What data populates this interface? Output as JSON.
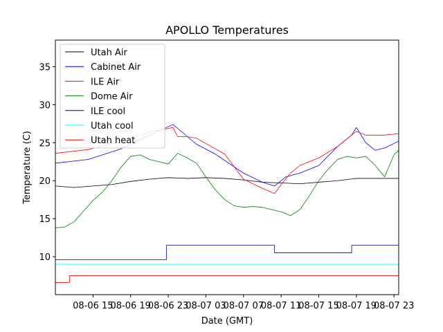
{
  "chart_data": {
    "type": "line",
    "title": "APOLLO Temperatures",
    "xlabel": "Date (GMT)",
    "ylabel": "Temperature (C)",
    "x_unit": "hours since 08-06 11:00 GMT",
    "xlim": [
      0,
      36.5
    ],
    "ylim": [
      5,
      38.5
    ],
    "x_ticks": [
      {
        "x": 4,
        "label": "08-06 15"
      },
      {
        "x": 8,
        "label": "08-06 19"
      },
      {
        "x": 12,
        "label": "08-06 23"
      },
      {
        "x": 16,
        "label": "08-07 03"
      },
      {
        "x": 20,
        "label": "08-07 07"
      },
      {
        "x": 24,
        "label": "08-07 11"
      },
      {
        "x": 28,
        "label": "08-07 15"
      },
      {
        "x": 32,
        "label": "08-07 19"
      },
      {
        "x": 36,
        "label": "08-07 23"
      }
    ],
    "y_ticks": [
      10,
      15,
      20,
      25,
      30,
      35
    ],
    "legend_position": "top-left",
    "series": [
      {
        "name": "Utah Air",
        "color": "#000000",
        "x": [
          0,
          2,
          3,
          4,
          6,
          8,
          10,
          12,
          14,
          16,
          18,
          20,
          22,
          24,
          26,
          28,
          30,
          32,
          34,
          36.5
        ],
        "y": [
          19.3,
          19.1,
          19.2,
          19.3,
          19.5,
          19.9,
          20.2,
          20.4,
          20.3,
          20.4,
          20.3,
          20.1,
          19.8,
          19.7,
          19.6,
          19.8,
          20.0,
          20.3,
          20.3,
          20.3
        ]
      },
      {
        "name": "Cabinet Air",
        "color": "#0000ff",
        "x": [
          0,
          3.5,
          7,
          10,
          12.5,
          15,
          17,
          20,
          22,
          23.3,
          24.5,
          26,
          28,
          30,
          31.5,
          32,
          33,
          34,
          35,
          36.5
        ],
        "y": [
          22.3,
          22.8,
          24.2,
          26.0,
          27.4,
          24.8,
          23.5,
          21.0,
          19.8,
          19.3,
          20.5,
          21.0,
          22.0,
          24.5,
          26.0,
          27.0,
          25.0,
          24.0,
          24.3,
          25.2
        ]
      },
      {
        "name": "ILE Air",
        "color": "#ff0000",
        "x": [
          0,
          3.5,
          7,
          10,
          12.5,
          13,
          14,
          15,
          17,
          18,
          20,
          22,
          23.3,
          24,
          25,
          26,
          28,
          30,
          31.5,
          32,
          33,
          34,
          35,
          36.5
        ],
        "y": [
          23.6,
          24.1,
          25.2,
          26.4,
          27.0,
          25.8,
          25.8,
          25.6,
          24.2,
          23.5,
          20.2,
          19.0,
          18.3,
          19.5,
          21.0,
          22.0,
          23.0,
          24.5,
          26.0,
          26.5,
          26.0,
          26.0,
          26.0,
          26.2
        ]
      },
      {
        "name": "Dome Air",
        "color": "#008000",
        "x": [
          0,
          1,
          2,
          3,
          4,
          5,
          6,
          7,
          8,
          9,
          10,
          11,
          12,
          13,
          14,
          15,
          16,
          17,
          18,
          19,
          20,
          21,
          22,
          23,
          24,
          25,
          26,
          27,
          28,
          29,
          30,
          31,
          32,
          33,
          34,
          35,
          36,
          36.5
        ],
        "y": [
          13.8,
          13.9,
          14.6,
          16.0,
          17.4,
          18.5,
          20.0,
          21.8,
          23.2,
          23.4,
          22.8,
          22.5,
          22.2,
          23.6,
          23.0,
          22.3,
          20.5,
          18.8,
          17.5,
          16.7,
          16.5,
          16.6,
          16.5,
          16.2,
          15.9,
          15.4,
          16.2,
          18.0,
          20.0,
          21.5,
          22.8,
          23.2,
          23.0,
          23.2,
          22.0,
          20.5,
          23.4,
          24.0
        ]
      },
      {
        "name": "ILE cool",
        "color": "#00008b",
        "x": [
          0,
          11.8,
          11.8,
          23.3,
          23.3,
          31.5,
          31.5,
          36.5
        ],
        "y": [
          9.6,
          9.6,
          11.5,
          11.5,
          10.5,
          10.5,
          11.5,
          11.5
        ]
      },
      {
        "name": "Utah cool",
        "color": "#00ffff",
        "x": [
          0,
          36.5
        ],
        "y": [
          9.0,
          9.0
        ]
      },
      {
        "name": "Utah heat",
        "color": "#ff0000",
        "x": [
          0,
          1.5,
          1.5,
          36.5
        ],
        "y": [
          6.6,
          6.6,
          7.5,
          7.5
        ]
      }
    ]
  }
}
